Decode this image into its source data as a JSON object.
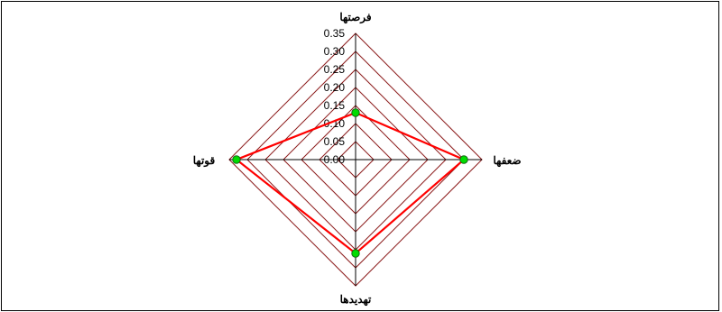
{
  "chart_data": {
    "type": "radar",
    "axes": [
      "فرصتها",
      "ضعفها",
      "تهدیدها",
      "قوتها"
    ],
    "r_ticks": [
      "0.00",
      "0.05",
      "0.10",
      "0.15",
      "0.20",
      "0.25",
      "0.30",
      "0.35"
    ],
    "rlim": [
      0,
      0.35
    ],
    "grid": true,
    "series": [
      {
        "values": [
          0.13,
          0.3,
          0.26,
          0.33
        ]
      }
    ],
    "colors": {
      "grid": "#8b1a1a",
      "axis": "#000000",
      "line": "#ff0000",
      "marker": "#00dd00",
      "marker_edge": "#116611"
    }
  }
}
